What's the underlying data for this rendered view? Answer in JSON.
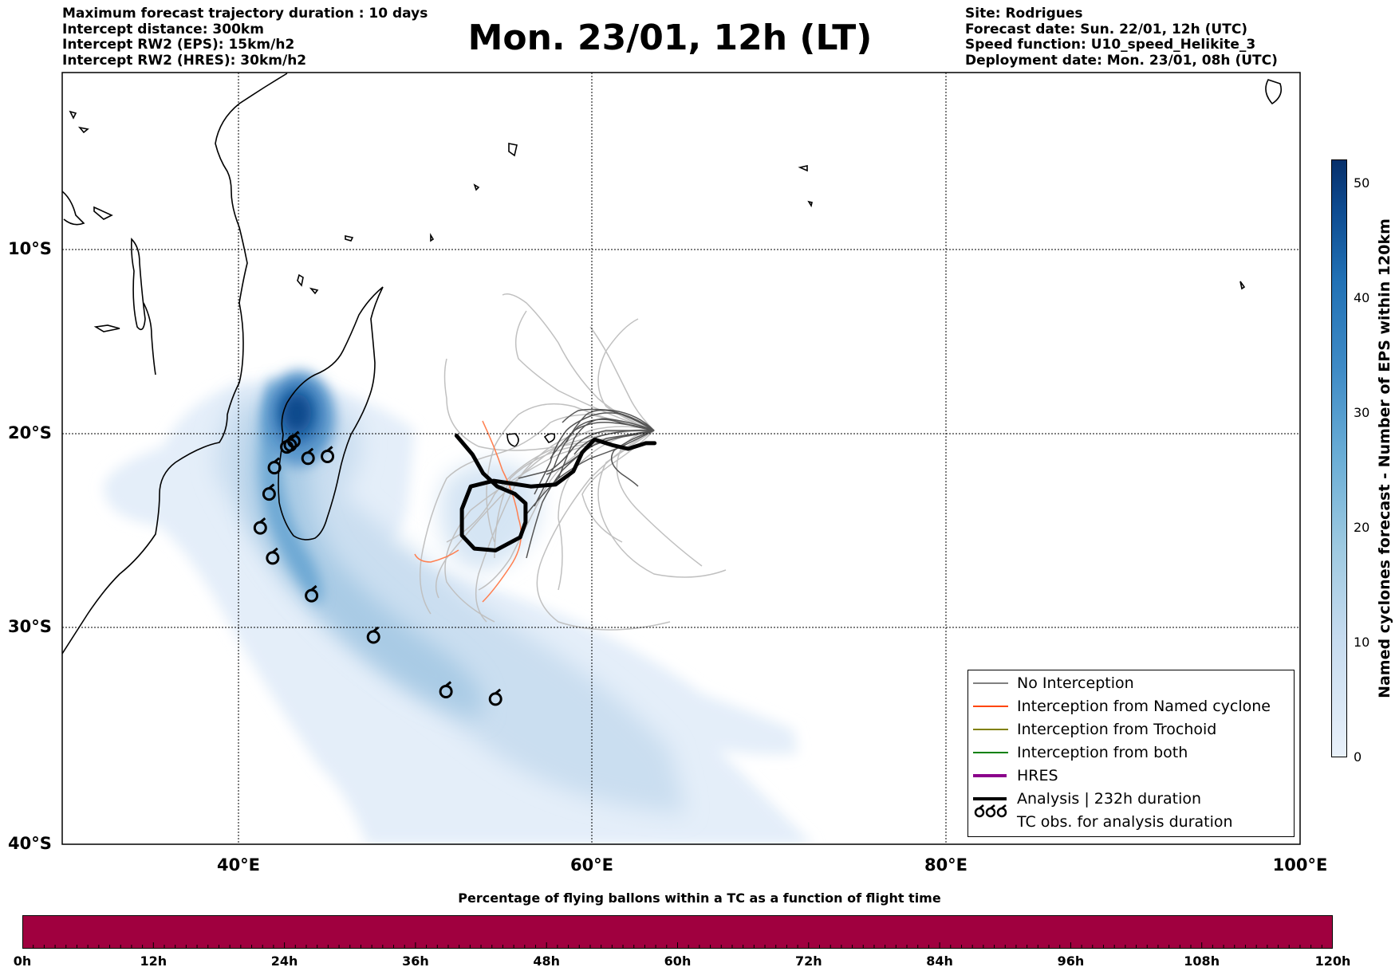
{
  "header_left": [
    "Maximum forecast trajectory duration : 10 days",
    "Intercept distance: 300km",
    "Intercept RW2 (EPS):  15km/h2",
    "Intercept RW2 (HRES): 30km/h2"
  ],
  "title": "Mon. 23/01, 12h (LT)",
  "header_right": [
    "Site: Rodrigues",
    "Forecast date: Sun. 22/01, 12h (UTC)",
    "Speed function: U10_speed_Helikite_3",
    "Deployment date: Mon. 23/01, 08h (UTC)"
  ],
  "map": {
    "lat_labels": [
      "10°S",
      "20°S",
      "30°S",
      "40°S"
    ],
    "lon_labels": [
      "40°E",
      "60°E",
      "80°E",
      "100°E"
    ],
    "lon_range": [
      30,
      100
    ],
    "lat_range": [
      -40,
      0
    ],
    "grid": "dotted"
  },
  "right_colorbar": {
    "label": "Named cyclones forecast - Number of EPS within 120km",
    "ticks": [
      "0",
      "10",
      "20",
      "30",
      "40",
      "50"
    ],
    "range": [
      0,
      52
    ],
    "colormap": "Blues"
  },
  "legend": {
    "items": [
      {
        "label": "No Interception",
        "color": "#808080",
        "style": "thin"
      },
      {
        "label": "Interception from Named cyclone",
        "color": "#ff4500",
        "style": "thin"
      },
      {
        "label": "Interception from Trochoid",
        "color": "#808000",
        "style": "thin"
      },
      {
        "label": "Interception from both",
        "color": "#008000",
        "style": "thin"
      },
      {
        "label": "HRES",
        "color": "#8b008b",
        "style": "thick"
      },
      {
        "label": "Analysis | 232h duration",
        "color": "#000000",
        "style": "thick"
      },
      {
        "label": "TC obs. for analysis duration",
        "color": "#000000",
        "style": "symbol"
      }
    ]
  },
  "bottom_colorbar": {
    "title": "Percentage of flying ballons within a TC as a function of flight time",
    "labels": [
      "0h",
      "12h",
      "24h",
      "36h",
      "48h",
      "60h",
      "72h",
      "84h",
      "96h",
      "108h",
      "120h"
    ],
    "fill_color": "#a0003f"
  },
  "tc_observations": [
    {
      "lon": 42.7,
      "lat": -19.9
    },
    {
      "lon": 43.1,
      "lat": -19.6
    },
    {
      "lon": 42.9,
      "lat": -19.8
    },
    {
      "lon": 43.9,
      "lat": -20.5
    },
    {
      "lon": 45.0,
      "lat": -20.4
    },
    {
      "lon": 42.0,
      "lat": -21.0
    },
    {
      "lon": 41.7,
      "lat": -22.4
    },
    {
      "lon": 41.2,
      "lat": -24.2
    },
    {
      "lon": 41.9,
      "lat": -25.8
    },
    {
      "lon": 44.1,
      "lat": -27.8
    },
    {
      "lon": 47.6,
      "lat": -30.0
    },
    {
      "lon": 51.7,
      "lat": -32.9
    },
    {
      "lon": 54.5,
      "lat": -33.3
    }
  ],
  "analysis_track": [
    [
      52.3,
      -19.3
    ],
    [
      53.2,
      -20.3
    ],
    [
      53.8,
      -21.3
    ],
    [
      54.6,
      -22.0
    ],
    [
      55.6,
      -22.4
    ],
    [
      56.2,
      -22.9
    ],
    [
      56.2,
      -23.9
    ],
    [
      55.9,
      -24.7
    ],
    [
      54.5,
      -25.4
    ],
    [
      53.3,
      -25.3
    ],
    [
      52.6,
      -24.6
    ],
    [
      52.6,
      -23.2
    ],
    [
      53.1,
      -22.0
    ],
    [
      54.4,
      -21.7
    ],
    [
      56.5,
      -22.0
    ],
    [
      57.9,
      -21.9
    ],
    [
      58.9,
      -21.2
    ],
    [
      59.4,
      -20.2
    ],
    [
      60.1,
      -19.5
    ],
    [
      61.1,
      -19.8
    ],
    [
      62.0,
      -20.0
    ],
    [
      63.0,
      -19.7
    ],
    [
      63.5,
      -19.7
    ]
  ]
}
